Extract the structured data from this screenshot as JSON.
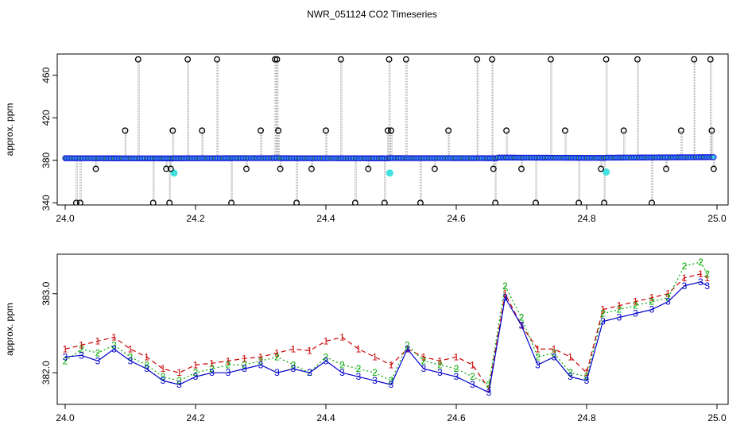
{
  "title": "NWR_051124  CO2 Timeseries",
  "chart_data": [
    {
      "type": "scatter",
      "panel": "top",
      "ylabel": "approx. ppm",
      "xlim": [
        24.0,
        25.0
      ],
      "ylim": [
        338,
        480
      ],
      "xticks": [
        24.0,
        24.2,
        24.4,
        24.6,
        24.8,
        25.0
      ],
      "xtick_labels": [
        "24.0",
        "24.2",
        "24.4",
        "24.6",
        "24.8",
        "25.0"
      ],
      "yticks": [
        340,
        380,
        420,
        460
      ],
      "ytick_labels": [
        "340",
        "380",
        "420",
        "460"
      ],
      "baseline": {
        "color": "#1515e0",
        "segments": [
          {
            "x": [
              24.0,
              24.165
            ],
            "y": [
              382.0,
              381.8
            ]
          },
          {
            "x": [
              24.167,
              24.33
            ],
            "y": [
              381.9,
              382.1
            ]
          },
          {
            "x": [
              24.333,
              24.496
            ],
            "y": [
              382.0,
              381.9
            ]
          },
          {
            "x": [
              24.498,
              24.662
            ],
            "y": [
              382.1,
              382.0
            ]
          },
          {
            "x": [
              24.664,
              24.828
            ],
            "y": [
              382.6,
              382.3
            ]
          },
          {
            "x": [
              24.83,
              24.995
            ],
            "y": [
              382.5,
              383.0
            ]
          }
        ]
      },
      "cyan_points": {
        "x": [
          24.167,
          24.498,
          24.83
        ],
        "y": [
          368,
          368,
          369
        ]
      },
      "spike_points": {
        "color": "#000000",
        "x": [
          24.017,
          24.023,
          24.047,
          24.092,
          24.112,
          24.135,
          24.155,
          24.16,
          24.162,
          24.165,
          24.188,
          24.21,
          24.233,
          24.255,
          24.278,
          24.3,
          24.322,
          24.325,
          24.327,
          24.33,
          24.355,
          24.378,
          24.4,
          24.423,
          24.445,
          24.465,
          24.49,
          24.495,
          24.497,
          24.5,
          24.523,
          24.545,
          24.567,
          24.588,
          24.632,
          24.655,
          24.657,
          24.66,
          24.677,
          24.7,
          24.722,
          24.745,
          24.767,
          24.788,
          24.822,
          24.827,
          24.83,
          24.857,
          24.878,
          24.9,
          24.922,
          24.945,
          24.965,
          24.99,
          24.992,
          24.995
        ],
        "y": [
          340,
          340,
          372,
          408,
          475,
          340,
          372,
          340,
          372,
          408,
          475,
          408,
          475,
          340,
          372,
          408,
          475,
          475,
          408,
          372,
          340,
          372,
          408,
          475,
          340,
          372,
          340,
          408,
          475,
          408,
          475,
          340,
          372,
          408,
          475,
          475,
          372,
          340,
          408,
          372,
          340,
          475,
          408,
          340,
          372,
          340,
          475,
          408,
          475,
          340,
          372,
          408,
          475,
          475,
          408,
          372
        ]
      }
    },
    {
      "type": "line",
      "panel": "bottom",
      "ylabel": "approx. ppm",
      "xlim": [
        24.0,
        25.0
      ],
      "ylim": [
        381.6,
        383.5
      ],
      "xticks": [
        24.0,
        24.2,
        24.4,
        24.6,
        24.8,
        25.0
      ],
      "xtick_labels": [
        "24.0",
        "24.2",
        "24.4",
        "24.6",
        "24.8",
        "25.0"
      ],
      "yticks": [
        382.0,
        383.0
      ],
      "ytick_labels": [
        "382.0",
        "383.0"
      ],
      "series": [
        {
          "marker": "1",
          "color": "#cc0000",
          "x": [
            24.0,
            24.025,
            24.05,
            24.075,
            24.1,
            24.125,
            24.15,
            24.175,
            24.2,
            24.225,
            24.25,
            24.275,
            24.3,
            24.325,
            24.35,
            24.375,
            24.4,
            24.425,
            24.45,
            24.475,
            24.5,
            24.525,
            24.55,
            24.575,
            24.6,
            24.625,
            24.65,
            24.675,
            24.7,
            24.725,
            24.75,
            24.775,
            24.8,
            24.825,
            24.85,
            24.875,
            24.9,
            24.925,
            24.95,
            24.975,
            24.985
          ],
          "y": [
            382.3,
            382.35,
            382.4,
            382.45,
            382.3,
            382.2,
            382.05,
            382.0,
            382.1,
            382.12,
            382.15,
            382.18,
            382.2,
            382.25,
            382.3,
            382.28,
            382.4,
            382.45,
            382.3,
            382.2,
            382.1,
            382.3,
            382.2,
            382.15,
            382.2,
            382.1,
            381.8,
            383.0,
            382.6,
            382.3,
            382.3,
            382.2,
            382.0,
            382.8,
            382.85,
            382.9,
            382.95,
            383.0,
            383.2,
            383.25,
            383.2
          ]
        },
        {
          "marker": "2",
          "color": "#00aa00",
          "x": [
            24.0,
            24.025,
            24.05,
            24.075,
            24.1,
            24.125,
            24.15,
            24.175,
            24.2,
            24.225,
            24.25,
            24.275,
            24.3,
            24.325,
            24.35,
            24.375,
            24.4,
            24.425,
            24.45,
            24.475,
            24.5,
            24.525,
            24.55,
            24.575,
            24.6,
            24.625,
            24.65,
            24.675,
            24.7,
            24.725,
            24.75,
            24.775,
            24.8,
            24.825,
            24.85,
            24.875,
            24.9,
            24.925,
            24.95,
            24.975,
            24.985
          ],
          "y": [
            382.15,
            382.3,
            382.25,
            382.35,
            382.2,
            382.1,
            381.95,
            381.9,
            382.0,
            382.05,
            382.1,
            382.1,
            382.15,
            382.2,
            382.1,
            382.0,
            382.2,
            382.1,
            382.05,
            382.0,
            381.9,
            382.35,
            382.15,
            382.1,
            382.05,
            381.95,
            381.85,
            383.1,
            382.7,
            382.2,
            382.25,
            382.0,
            381.95,
            382.75,
            382.8,
            382.85,
            382.9,
            382.95,
            383.35,
            383.4,
            383.25
          ]
        },
        {
          "marker": "3",
          "color": "#0000cc",
          "x": [
            24.0,
            24.025,
            24.05,
            24.075,
            24.1,
            24.125,
            24.15,
            24.175,
            24.2,
            24.225,
            24.25,
            24.275,
            24.3,
            24.325,
            24.35,
            24.375,
            24.4,
            24.425,
            24.45,
            24.475,
            24.5,
            24.525,
            24.55,
            24.575,
            24.6,
            24.625,
            24.65,
            24.675,
            24.7,
            24.725,
            24.75,
            24.775,
            24.8,
            24.825,
            24.85,
            24.875,
            24.9,
            24.925,
            24.95,
            24.975,
            24.985
          ],
          "y": [
            382.2,
            382.22,
            382.15,
            382.3,
            382.15,
            382.05,
            381.9,
            381.85,
            381.95,
            382.0,
            382.0,
            382.05,
            382.1,
            382.0,
            382.05,
            382.0,
            382.15,
            382.0,
            381.95,
            381.9,
            381.85,
            382.3,
            382.05,
            382.0,
            381.95,
            381.85,
            381.75,
            382.95,
            382.6,
            382.1,
            382.2,
            381.95,
            381.9,
            382.65,
            382.7,
            382.75,
            382.8,
            382.9,
            383.1,
            383.15,
            383.1
          ]
        }
      ]
    }
  ]
}
